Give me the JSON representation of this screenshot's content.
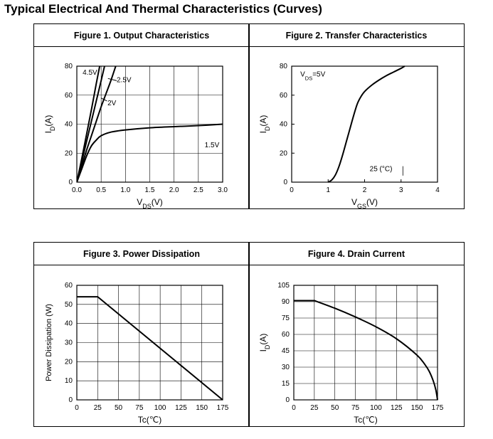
{
  "page": {
    "title": "Typical Electrical And Thermal Characteristics (Curves)"
  },
  "chart_data": [
    {
      "id": "fig1",
      "type": "line",
      "title": "Figure 1. Output Characteristics",
      "xlabel": "V_DS(V)",
      "ylabel": "I_D(A)",
      "xlim": [
        0,
        3.0
      ],
      "ylim": [
        0,
        80
      ],
      "xticks": [
        "0.0",
        "0.5",
        "1.0",
        "1.5",
        "2.0",
        "2.5",
        "3.0"
      ],
      "yticks": [
        "0",
        "20",
        "40",
        "60",
        "80"
      ],
      "grid": true,
      "series": [
        {
          "name": "4.5V",
          "x": [
            0,
            0.1,
            0.2,
            0.3,
            0.4,
            0.47
          ],
          "y": [
            0,
            16,
            33,
            50,
            68,
            80
          ]
        },
        {
          "name": "2.5V",
          "x": [
            0,
            0.1,
            0.2,
            0.3,
            0.4,
            0.5,
            0.57
          ],
          "y": [
            0,
            14,
            28,
            42,
            56,
            70,
            80
          ]
        },
        {
          "name": "2V",
          "x": [
            0,
            0.1,
            0.2,
            0.3,
            0.4,
            0.5,
            0.6,
            0.7,
            0.8
          ],
          "y": [
            0,
            11,
            22,
            32,
            42,
            52,
            61,
            70,
            80
          ]
        },
        {
          "name": "1.5V",
          "x": [
            0,
            0.1,
            0.2,
            0.3,
            0.4,
            0.5,
            0.7,
            1.0,
            1.5,
            2.0,
            2.5,
            3.0
          ],
          "y": [
            0,
            9,
            18,
            25,
            29,
            32,
            34.5,
            36,
            37.5,
            38.3,
            39,
            40
          ]
        }
      ],
      "annotations": [
        {
          "text": "4.5V",
          "x": 0.27,
          "y": 74
        },
        {
          "text": "2.5V",
          "x": 0.97,
          "y": 69
        },
        {
          "text": "2V",
          "x": 0.72,
          "y": 53
        },
        {
          "text": "1.5V",
          "x": 2.78,
          "y": 24
        }
      ]
    },
    {
      "id": "fig2",
      "type": "line",
      "title": "Figure 2. Transfer Characteristics",
      "xlabel": "V_GS(V)",
      "ylabel": "I_D(A)",
      "xlim": [
        0,
        4
      ],
      "ylim": [
        0,
        80
      ],
      "xticks": [
        "0",
        "1",
        "2",
        "3",
        "4"
      ],
      "yticks": [
        "0",
        "20",
        "40",
        "60",
        "80"
      ],
      "grid": false,
      "series": [
        {
          "name": "25 (°C)",
          "x": [
            1.0,
            1.1,
            1.2,
            1.3,
            1.4,
            1.5,
            1.6,
            1.7,
            1.8,
            1.9,
            2.0,
            2.2,
            2.4,
            2.6,
            2.8,
            3.0,
            3.1
          ],
          "y": [
            0,
            1.5,
            5,
            11,
            19,
            28,
            37,
            46,
            54,
            59,
            62.5,
            67,
            70.5,
            73.5,
            76,
            78.5,
            80
          ]
        }
      ],
      "annotations": [
        {
          "text": "V_DS=5V",
          "x": 0.58,
          "y": 73
        },
        {
          "text": "25 (°C)",
          "x": 2.45,
          "y": 7.5
        }
      ]
    },
    {
      "id": "fig3",
      "type": "line",
      "title": "Figure 3. Power Dissipation",
      "xlabel": "Tc(℃)",
      "ylabel": "Power Dissipation (W)",
      "xlim": [
        0,
        175
      ],
      "ylim": [
        0,
        60
      ],
      "xticks": [
        "0",
        "25",
        "50",
        "75",
        "100",
        "125",
        "150",
        "175"
      ],
      "yticks": [
        "0",
        "10",
        "20",
        "30",
        "40",
        "50",
        "60"
      ],
      "grid": true,
      "series": [
        {
          "name": "",
          "x": [
            0,
            25,
            175
          ],
          "y": [
            54,
            54,
            0
          ]
        }
      ]
    },
    {
      "id": "fig4",
      "type": "line",
      "title": "Figure 4. Drain Current",
      "xlabel": "Tc(℃)",
      "ylabel": "I_D(A)",
      "xlim": [
        0,
        175
      ],
      "ylim": [
        0,
        105
      ],
      "xticks": [
        "0",
        "25",
        "50",
        "75",
        "100",
        "125",
        "150",
        "175"
      ],
      "yticks": [
        "0",
        "15",
        "30",
        "45",
        "60",
        "75",
        "90",
        "105"
      ],
      "grid": true,
      "series": [
        {
          "name": "",
          "x": [
            0,
            25,
            50,
            75,
            100,
            125,
            150,
            160,
            165,
            170,
            173,
            175
          ],
          "y": [
            91,
            91,
            84,
            76,
            67,
            56,
            41,
            32,
            26,
            17,
            9,
            0
          ]
        }
      ]
    }
  ]
}
